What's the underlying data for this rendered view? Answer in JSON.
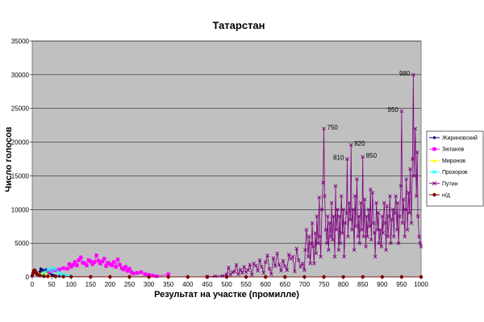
{
  "chart_data": {
    "type": "scatter",
    "title": "Татарстан",
    "xlabel": "Результат на участке (промилле)",
    "ylabel": "Число голосов",
    "xlim": [
      0,
      1000
    ],
    "ylim": [
      0,
      35000
    ],
    "x_ticks": [
      0,
      50,
      100,
      150,
      200,
      250,
      300,
      350,
      400,
      450,
      500,
      550,
      600,
      650,
      700,
      750,
      800,
      850,
      900,
      950,
      1000
    ],
    "y_ticks": [
      0,
      5000,
      10000,
      15000,
      20000,
      25000,
      30000,
      35000
    ],
    "grid": "horizontal",
    "legend_position": "right",
    "plot_background": "#c0c0c0",
    "series": [
      {
        "name": "Жириновский",
        "color": "#000080",
        "marker": "diamond",
        "points": [
          [
            15,
            300
          ],
          [
            20,
            800
          ],
          [
            22,
            1200
          ],
          [
            25,
            600
          ],
          [
            28,
            1000
          ],
          [
            30,
            900
          ],
          [
            33,
            700
          ],
          [
            36,
            1100
          ],
          [
            40,
            500
          ],
          [
            45,
            400
          ],
          [
            50,
            300
          ],
          [
            55,
            200
          ],
          [
            60,
            150
          ],
          [
            70,
            100
          ]
        ]
      },
      {
        "name": "Зюганов",
        "color": "#ff00ff",
        "marker": "square",
        "points": [
          [
            40,
            700
          ],
          [
            50,
            900
          ],
          [
            60,
            1000
          ],
          [
            70,
            1100
          ],
          [
            80,
            1300
          ],
          [
            90,
            1200
          ],
          [
            95,
            1900
          ],
          [
            100,
            1500
          ],
          [
            105,
            1800
          ],
          [
            110,
            2200
          ],
          [
            115,
            1700
          ],
          [
            120,
            2500
          ],
          [
            125,
            2900
          ],
          [
            130,
            2100
          ],
          [
            135,
            2000
          ],
          [
            140,
            1700
          ],
          [
            145,
            2500
          ],
          [
            150,
            2300
          ],
          [
            155,
            1900
          ],
          [
            160,
            2200
          ],
          [
            165,
            3200
          ],
          [
            170,
            2400
          ],
          [
            175,
            2000
          ],
          [
            180,
            2300
          ],
          [
            185,
            2700
          ],
          [
            190,
            1600
          ],
          [
            195,
            2100
          ],
          [
            200,
            1900
          ],
          [
            205,
            1700
          ],
          [
            210,
            2200
          ],
          [
            215,
            1500
          ],
          [
            220,
            2600
          ],
          [
            225,
            1800
          ],
          [
            230,
            1300
          ],
          [
            235,
            1100
          ],
          [
            240,
            1500
          ],
          [
            245,
            900
          ],
          [
            250,
            1200
          ],
          [
            255,
            700
          ],
          [
            260,
            500
          ],
          [
            270,
            600
          ],
          [
            280,
            700
          ],
          [
            290,
            400
          ],
          [
            300,
            300
          ],
          [
            310,
            200
          ],
          [
            320,
            100
          ],
          [
            350,
            400
          ]
        ]
      },
      {
        "name": "Миронов",
        "color": "#ffff00",
        "marker": "triangle",
        "points": [
          [
            20,
            400
          ],
          [
            25,
            600
          ],
          [
            30,
            700
          ],
          [
            35,
            500
          ],
          [
            40,
            300
          ],
          [
            45,
            200
          ]
        ]
      },
      {
        "name": "Прохоров",
        "color": "#00ffff",
        "marker": "x",
        "points": [
          [
            20,
            200
          ],
          [
            30,
            500
          ],
          [
            35,
            800
          ],
          [
            40,
            1000
          ],
          [
            45,
            1200
          ],
          [
            50,
            900
          ],
          [
            55,
            1300
          ],
          [
            60,
            1100
          ],
          [
            65,
            800
          ],
          [
            70,
            600
          ],
          [
            75,
            400
          ],
          [
            80,
            300
          ],
          [
            90,
            200
          ],
          [
            100,
            100
          ]
        ]
      },
      {
        "name": "Путин",
        "color": "#800080",
        "marker": "x",
        "points": [
          [
            450,
            50
          ],
          [
            470,
            100
          ],
          [
            490,
            150
          ],
          [
            500,
            400
          ],
          [
            505,
            1400
          ],
          [
            510,
            300
          ],
          [
            515,
            700
          ],
          [
            520,
            800
          ],
          [
            525,
            1800
          ],
          [
            530,
            400
          ],
          [
            535,
            1100
          ],
          [
            540,
            600
          ],
          [
            545,
            1500
          ],
          [
            550,
            700
          ],
          [
            555,
            1000
          ],
          [
            560,
            1800
          ],
          [
            565,
            300
          ],
          [
            570,
            2000
          ],
          [
            575,
            1700
          ],
          [
            580,
            900
          ],
          [
            585,
            2500
          ],
          [
            590,
            1500
          ],
          [
            595,
            600
          ],
          [
            600,
            2200
          ],
          [
            605,
            3200
          ],
          [
            610,
            1200
          ],
          [
            615,
            400
          ],
          [
            620,
            2800
          ],
          [
            625,
            1600
          ],
          [
            630,
            3500
          ],
          [
            635,
            1800
          ],
          [
            640,
            900
          ],
          [
            645,
            2400
          ],
          [
            650,
            1600
          ],
          [
            655,
            1000
          ],
          [
            660,
            3300
          ],
          [
            665,
            2700
          ],
          [
            670,
            3000
          ],
          [
            675,
            800
          ],
          [
            680,
            4200
          ],
          [
            685,
            2500
          ],
          [
            690,
            1500
          ],
          [
            695,
            2000
          ],
          [
            700,
            1000
          ],
          [
            702,
            4000
          ],
          [
            705,
            7000
          ],
          [
            710,
            3000
          ],
          [
            712,
            6000
          ],
          [
            715,
            2000
          ],
          [
            718,
            5000
          ],
          [
            720,
            8000
          ],
          [
            722,
            4500
          ],
          [
            725,
            2000
          ],
          [
            728,
            6500
          ],
          [
            730,
            3500
          ],
          [
            732,
            9000
          ],
          [
            735,
            5000
          ],
          [
            738,
            11800
          ],
          [
            740,
            6000
          ],
          [
            742,
            3000
          ],
          [
            745,
            10000
          ],
          [
            748,
            14000
          ],
          [
            750,
            22000
          ],
          [
            752,
            12000
          ],
          [
            755,
            7000
          ],
          [
            758,
            5000
          ],
          [
            760,
            9000
          ],
          [
            762,
            4000
          ],
          [
            765,
            8000
          ],
          [
            768,
            6000
          ],
          [
            770,
            11000
          ],
          [
            772,
            5500
          ],
          [
            775,
            9000
          ],
          [
            778,
            3000
          ],
          [
            780,
            13500
          ],
          [
            782,
            7000
          ],
          [
            785,
            10000
          ],
          [
            788,
            4000
          ],
          [
            790,
            9000
          ],
          [
            792,
            5000
          ],
          [
            795,
            12000
          ],
          [
            798,
            6500
          ],
          [
            800,
            10000
          ],
          [
            802,
            3000
          ],
          [
            805,
            8000
          ],
          [
            808,
            9500
          ],
          [
            810,
            17500
          ],
          [
            812,
            6000
          ],
          [
            815,
            11000
          ],
          [
            818,
            8500
          ],
          [
            820,
            19600
          ],
          [
            822,
            7000
          ],
          [
            825,
            10000
          ],
          [
            828,
            4000
          ],
          [
            830,
            12000
          ],
          [
            832,
            7500
          ],
          [
            835,
            14500
          ],
          [
            838,
            6000
          ],
          [
            840,
            9000
          ],
          [
            842,
            5000
          ],
          [
            845,
            11000
          ],
          [
            848,
            7000
          ],
          [
            850,
            17800
          ],
          [
            852,
            6000
          ],
          [
            855,
            11500
          ],
          [
            858,
            4500
          ],
          [
            860,
            9000
          ],
          [
            862,
            6000
          ],
          [
            865,
            10000
          ],
          [
            868,
            7500
          ],
          [
            870,
            13000
          ],
          [
            872,
            5500
          ],
          [
            875,
            12500
          ],
          [
            878,
            8000
          ],
          [
            880,
            6500
          ],
          [
            882,
            3000
          ],
          [
            885,
            11000
          ],
          [
            888,
            7000
          ],
          [
            890,
            9500
          ],
          [
            892,
            5000
          ],
          [
            895,
            7000
          ],
          [
            898,
            4500
          ],
          [
            900,
            9000
          ],
          [
            902,
            6500
          ],
          [
            905,
            11000
          ],
          [
            908,
            8000
          ],
          [
            910,
            4000
          ],
          [
            912,
            10500
          ],
          [
            915,
            6000
          ],
          [
            918,
            9000
          ],
          [
            920,
            12000
          ],
          [
            922,
            5000
          ],
          [
            925,
            8500
          ],
          [
            928,
            10000
          ],
          [
            930,
            6000
          ],
          [
            932,
            9500
          ],
          [
            935,
            12000
          ],
          [
            938,
            7000
          ],
          [
            940,
            11000
          ],
          [
            942,
            5000
          ],
          [
            945,
            9000
          ],
          [
            948,
            13500
          ],
          [
            950,
            24600
          ],
          [
            952,
            8000
          ],
          [
            955,
            11500
          ],
          [
            958,
            6000
          ],
          [
            960,
            10000
          ],
          [
            962,
            14500
          ],
          [
            965,
            7000
          ],
          [
            968,
            12500
          ],
          [
            970,
            9500
          ],
          [
            972,
            16000
          ],
          [
            975,
            8000
          ],
          [
            978,
            17500
          ],
          [
            980,
            30000
          ],
          [
            982,
            15000
          ],
          [
            985,
            22000
          ],
          [
            988,
            12000
          ],
          [
            990,
            18500
          ],
          [
            992,
            9000
          ],
          [
            995,
            6000
          ],
          [
            998,
            5000
          ],
          [
            1000,
            4500
          ]
        ]
      },
      {
        "name": "н/д",
        "color": "#800000",
        "marker": "circle",
        "points": [
          [
            0,
            200
          ],
          [
            2,
            600
          ],
          [
            4,
            900
          ],
          [
            6,
            1000
          ],
          [
            8,
            800
          ],
          [
            10,
            600
          ],
          [
            12,
            400
          ],
          [
            15,
            300
          ],
          [
            20,
            200
          ],
          [
            30,
            100
          ],
          [
            40,
            80
          ],
          [
            60,
            60
          ],
          [
            80,
            40
          ],
          [
            100,
            30
          ],
          [
            150,
            20
          ],
          [
            200,
            15
          ],
          [
            250,
            10
          ],
          [
            300,
            10
          ],
          [
            350,
            8
          ],
          [
            400,
            6
          ],
          [
            450,
            5
          ],
          [
            500,
            5
          ],
          [
            550,
            4
          ],
          [
            600,
            3
          ],
          [
            650,
            3
          ],
          [
            700,
            2
          ],
          [
            750,
            2
          ],
          [
            800,
            2
          ],
          [
            850,
            1
          ],
          [
            900,
            1
          ],
          [
            950,
            1
          ],
          [
            1000,
            1
          ]
        ]
      }
    ],
    "annotations": [
      {
        "x": 750,
        "y": 22000,
        "text": "750",
        "side": "right"
      },
      {
        "x": 820,
        "y": 19600,
        "text": "820",
        "side": "right"
      },
      {
        "x": 810,
        "y": 17500,
        "text": "810",
        "side": "left"
      },
      {
        "x": 850,
        "y": 17800,
        "text": "850",
        "side": "right"
      },
      {
        "x": 950,
        "y": 24600,
        "text": "950",
        "side": "left"
      },
      {
        "x": 980,
        "y": 30000,
        "text": "980",
        "side": "left"
      }
    ]
  }
}
